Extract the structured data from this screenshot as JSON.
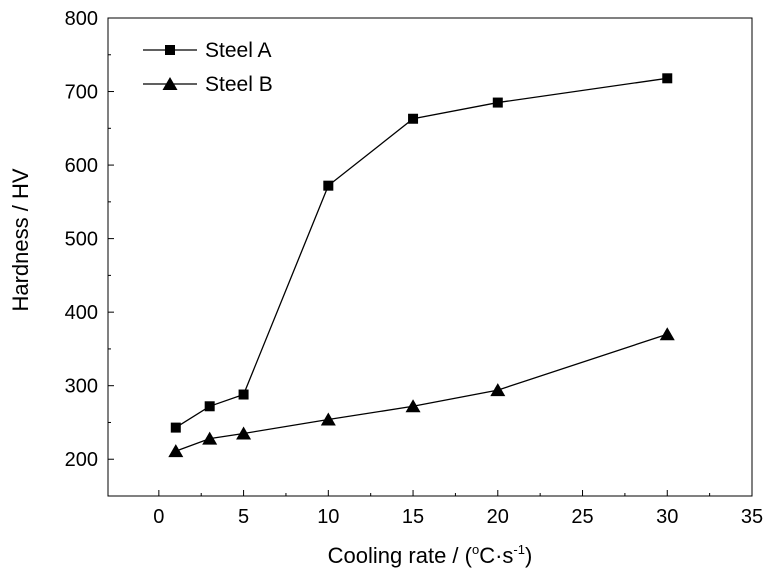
{
  "chart_data": {
    "type": "line",
    "xlabel": "Cooling rate / (°C·s⁻¹)",
    "ylabel": "Hardness / HV",
    "xlim": [
      -3,
      35
    ],
    "ylim": [
      150,
      800
    ],
    "xticks": [
      0,
      5,
      10,
      15,
      20,
      25,
      30,
      35
    ],
    "yticks": [
      200,
      300,
      400,
      500,
      600,
      700,
      800
    ],
    "grid": false,
    "legend": "top-left",
    "series": [
      {
        "name": "Steel A",
        "marker": "square",
        "x": [
          1,
          3,
          5,
          10,
          15,
          20,
          30
        ],
        "values": [
          243,
          272,
          288,
          572,
          663,
          685,
          718
        ]
      },
      {
        "name": "Steel B",
        "marker": "triangle",
        "x": [
          1,
          3,
          5,
          10,
          15,
          20,
          30
        ],
        "values": [
          211,
          228,
          235,
          254,
          272,
          294,
          370
        ]
      }
    ]
  }
}
